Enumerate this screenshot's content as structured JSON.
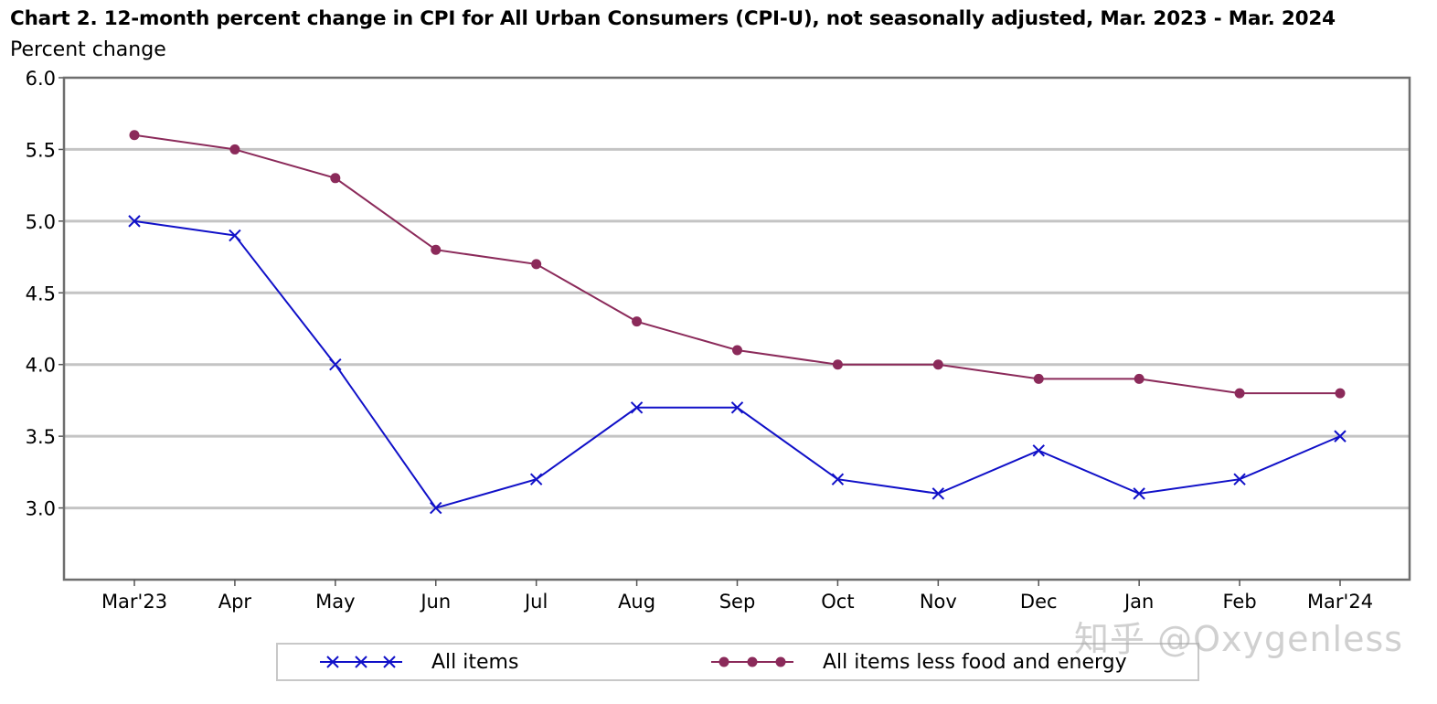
{
  "chart_data": {
    "type": "line",
    "title": "Chart 2. 12-month percent change in CPI for All Urban Consumers (CPI-U), not seasonally adjusted, Mar. 2023 - Mar. 2024",
    "ylabel": "Percent change",
    "xlabel": "",
    "categories": [
      "Mar'23",
      "Apr",
      "May",
      "Jun",
      "Jul",
      "Aug",
      "Sep",
      "Oct",
      "Nov",
      "Dec",
      "Jan",
      "Feb",
      "Mar'24"
    ],
    "ylim": [
      2.5,
      6.0
    ],
    "yticks": [
      "3.0",
      "3.5",
      "4.0",
      "4.5",
      "5.0",
      "5.5",
      "6.0"
    ],
    "grid": true,
    "legend_position": "bottom",
    "series": [
      {
        "name": "All items",
        "marker": "x",
        "color": "#1010c8",
        "values": [
          5.0,
          4.9,
          4.0,
          3.0,
          3.2,
          3.7,
          3.7,
          3.2,
          3.1,
          3.4,
          3.1,
          3.2,
          3.5
        ]
      },
      {
        "name": "All items less food and energy",
        "marker": "circle",
        "color": "#8b2a5a",
        "values": [
          5.6,
          5.5,
          5.3,
          4.8,
          4.7,
          4.3,
          4.1,
          4.0,
          4.0,
          3.9,
          3.9,
          3.8,
          3.8
        ]
      }
    ]
  },
  "watermark": "知乎 @Oxygenless"
}
